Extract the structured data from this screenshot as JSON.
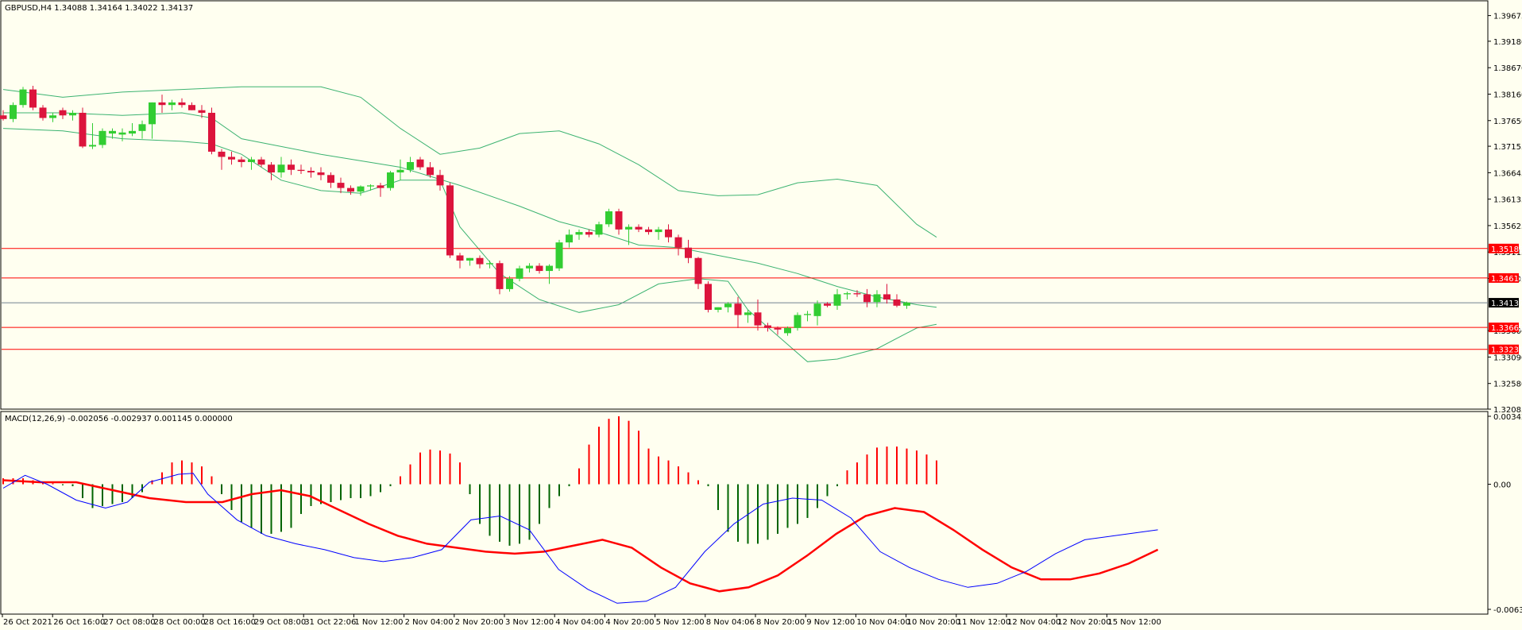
{
  "main_pane": {
    "symbol_info": "GBPUSD,H4  1.34088 1.34164 1.34022 1.34137",
    "y_ticks": [
      "1.39675",
      "1.39180",
      "1.38670",
      "1.38160",
      "1.37650",
      "1.37155",
      "1.36645",
      "1.36135",
      "1.35625",
      "1.35115",
      "1.34605",
      "1.34137",
      "1.33600",
      "1.33090",
      "1.32580",
      "1.32085"
    ],
    "current_price": "1.34137",
    "hlines": [
      {
        "value": 1.35183,
        "label": "1.35183"
      },
      {
        "value": 1.34614,
        "label": "1.34614"
      },
      {
        "value": 1.33662,
        "label": "1.33662"
      },
      {
        "value": 1.33238,
        "label": "1.33238"
      }
    ]
  },
  "macd_pane": {
    "info": "MACD(12,26,9) -0.002056 -0.002937 0.001145 0.000000",
    "y_ticks": [
      "0.003427",
      "0.00",
      "-0.00631"
    ]
  },
  "x_labels": [
    "26 Oct 2021",
    "26 Oct 16:00",
    "27 Oct 08:00",
    "28 Oct 00:00",
    "28 Oct 16:00",
    "29 Oct 08:00",
    "31 Oct 22:06",
    "1 Nov 12:00",
    "2 Nov 04:00",
    "2 Nov 20:00",
    "3 Nov 12:00",
    "4 Nov 04:00",
    "4 Nov 20:00",
    "5 Nov 12:00",
    "8 Nov 04:06",
    "8 Nov 20:00",
    "9 Nov 12:00",
    "10 Nov 04:00",
    "10 Nov 20:00",
    "11 Nov 12:00",
    "12 Nov 04:00",
    "12 Nov 20:00",
    "15 Nov 12:00"
  ],
  "colors": {
    "bull": "#32cd32",
    "bear": "#dc143c",
    "bands": "#3cb371",
    "hline": "#ff0000",
    "macd_line": "#0000ff",
    "signal_line": "#ff0000",
    "hist_pos": "#ff0000",
    "hist_neg": "#006400"
  },
  "chart_data": [
    {
      "type": "candlestick",
      "candles": [
        [
          1.3775,
          1.3785,
          1.3765,
          1.3768
        ],
        [
          1.3768,
          1.38,
          1.3762,
          1.3795
        ],
        [
          1.3795,
          1.383,
          1.379,
          1.3825
        ],
        [
          1.3825,
          1.3832,
          1.3785,
          1.379
        ],
        [
          1.379,
          1.3795,
          1.3765,
          1.377
        ],
        [
          1.377,
          1.378,
          1.3762,
          1.3775
        ],
        [
          1.3785,
          1.379,
          1.3768,
          1.3775
        ],
        [
          1.3775,
          1.3785,
          1.3765,
          1.378
        ],
        [
          1.378,
          1.379,
          1.3712,
          1.3715
        ],
        [
          1.3715,
          1.376,
          1.371,
          1.3718
        ],
        [
          1.3718,
          1.375,
          1.3712,
          1.3745
        ],
        [
          1.374,
          1.375,
          1.373,
          1.3745
        ],
        [
          1.3738,
          1.375,
          1.3725,
          1.3742
        ],
        [
          1.374,
          1.376,
          1.3735,
          1.3745
        ],
        [
          1.3745,
          1.3765,
          1.373,
          1.3758
        ],
        [
          1.3758,
          1.38,
          1.373,
          1.38
        ],
        [
          1.38,
          1.3815,
          1.378,
          1.3795
        ],
        [
          1.3795,
          1.3805,
          1.3785,
          1.38
        ],
        [
          1.38,
          1.3808,
          1.379,
          1.3795
        ],
        [
          1.3795,
          1.38,
          1.3785,
          1.3785
        ],
        [
          1.3785,
          1.3795,
          1.377,
          1.378
        ],
        [
          1.378,
          1.379,
          1.37,
          1.3705
        ],
        [
          1.3705,
          1.371,
          1.367,
          1.3695
        ],
        [
          1.3695,
          1.3705,
          1.368,
          1.369
        ],
        [
          1.369,
          1.3695,
          1.3675,
          1.3685
        ],
        [
          1.3685,
          1.3695,
          1.367,
          1.369
        ],
        [
          1.369,
          1.3695,
          1.3675,
          1.368
        ],
        [
          1.368,
          1.3685,
          1.365,
          1.3665
        ],
        [
          1.3665,
          1.3695,
          1.3655,
          1.368
        ],
        [
          1.368,
          1.369,
          1.366,
          1.367
        ],
        [
          1.367,
          1.368,
          1.3662,
          1.3668
        ],
        [
          1.3668,
          1.3675,
          1.3655,
          1.3665
        ],
        [
          1.3665,
          1.3675,
          1.365,
          1.366
        ],
        [
          1.366,
          1.3665,
          1.3635,
          1.3645
        ],
        [
          1.3645,
          1.3655,
          1.3625,
          1.3635
        ],
        [
          1.3635,
          1.364,
          1.3622,
          1.3628
        ],
        [
          1.3628,
          1.364,
          1.362,
          1.3638
        ],
        [
          1.3638,
          1.3642,
          1.363,
          1.364
        ],
        [
          1.364,
          1.3645,
          1.3618,
          1.3635
        ],
        [
          1.3635,
          1.3668,
          1.363,
          1.3665
        ],
        [
          1.3665,
          1.369,
          1.365,
          1.367
        ],
        [
          1.367,
          1.3695,
          1.3665,
          1.3685
        ],
        [
          1.369,
          1.3695,
          1.367,
          1.3675
        ],
        [
          1.3675,
          1.3685,
          1.3655,
          1.366
        ],
        [
          1.366,
          1.367,
          1.363,
          1.364
        ],
        [
          1.364,
          1.3645,
          1.35,
          1.3505
        ],
        [
          1.3505,
          1.351,
          1.348,
          1.3495
        ],
        [
          1.3495,
          1.35,
          1.3485,
          1.35
        ],
        [
          1.35,
          1.3505,
          1.348,
          1.3488
        ],
        [
          1.3488,
          1.3495,
          1.348,
          1.349
        ],
        [
          1.349,
          1.3495,
          1.343,
          1.344
        ],
        [
          1.344,
          1.3465,
          1.3435,
          1.346
        ],
        [
          1.346,
          1.3485,
          1.3455,
          1.348
        ],
        [
          1.348,
          1.349,
          1.3472,
          1.3485
        ],
        [
          1.3485,
          1.349,
          1.347,
          1.3475
        ],
        [
          1.3475,
          1.3488,
          1.345,
          1.3485
        ],
        [
          1.348,
          1.3535,
          1.3475,
          1.353
        ],
        [
          1.353,
          1.3555,
          1.352,
          1.3545
        ],
        [
          1.3545,
          1.3555,
          1.3535,
          1.355
        ],
        [
          1.355,
          1.3555,
          1.354,
          1.3545
        ],
        [
          1.3545,
          1.357,
          1.354,
          1.3565
        ],
        [
          1.3565,
          1.3595,
          1.356,
          1.359
        ],
        [
          1.359,
          1.3595,
          1.3545,
          1.3555
        ],
        [
          1.3555,
          1.3565,
          1.3525,
          1.356
        ],
        [
          1.356,
          1.3565,
          1.355,
          1.3555
        ],
        [
          1.3555,
          1.356,
          1.3545,
          1.355
        ],
        [
          1.355,
          1.356,
          1.3535,
          1.3555
        ],
        [
          1.3555,
          1.3565,
          1.353,
          1.354
        ],
        [
          1.354,
          1.3545,
          1.3505,
          1.352
        ],
        [
          1.352,
          1.3535,
          1.349,
          1.35
        ],
        [
          1.35,
          1.3502,
          1.344,
          1.345
        ],
        [
          1.345,
          1.3455,
          1.3395,
          1.34
        ],
        [
          1.34,
          1.3405,
          1.3395,
          1.3405
        ],
        [
          1.3405,
          1.3415,
          1.3395,
          1.3412
        ],
        [
          1.3412,
          1.3425,
          1.3365,
          1.339
        ],
        [
          1.339,
          1.34,
          1.3375,
          1.3395
        ],
        [
          1.3395,
          1.342,
          1.336,
          1.337
        ],
        [
          1.337,
          1.3375,
          1.3358,
          1.3365
        ],
        [
          1.3365,
          1.3368,
          1.3352,
          1.3362
        ],
        [
          1.3355,
          1.3368,
          1.335,
          1.3365
        ],
        [
          1.3365,
          1.3395,
          1.336,
          1.339
        ],
        [
          1.339,
          1.3398,
          1.3378,
          1.3392
        ],
        [
          1.3388,
          1.3418,
          1.337,
          1.3412
        ],
        [
          1.3412,
          1.3415,
          1.3405,
          1.3408
        ],
        [
          1.3408,
          1.344,
          1.34,
          1.343
        ],
        [
          1.343,
          1.3435,
          1.342,
          1.3432
        ],
        [
          1.3432,
          1.3438,
          1.3425,
          1.343
        ],
        [
          1.343,
          1.344,
          1.3405,
          1.3415
        ],
        [
          1.3415,
          1.3438,
          1.3405,
          1.343
        ],
        [
          1.343,
          1.345,
          1.3412,
          1.342
        ],
        [
          1.342,
          1.343,
          1.3405,
          1.3408
        ],
        [
          1.3408,
          1.3416,
          1.3402,
          1.3414
        ]
      ],
      "bands_upper": [
        [
          0,
          1.3825
        ],
        [
          6,
          1.381
        ],
        [
          12,
          1.382
        ],
        [
          18,
          1.3825
        ],
        [
          24,
          1.383
        ],
        [
          32,
          1.383
        ],
        [
          36,
          1.381
        ],
        [
          40,
          1.375
        ],
        [
          44,
          1.37
        ],
        [
          48,
          1.3712
        ],
        [
          52,
          1.374
        ],
        [
          56,
          1.3745
        ],
        [
          60,
          1.372
        ],
        [
          64,
          1.368
        ],
        [
          68,
          1.363
        ],
        [
          72,
          1.362
        ],
        [
          76,
          1.3622
        ],
        [
          80,
          1.3645
        ],
        [
          84,
          1.3652
        ],
        [
          88,
          1.364
        ],
        [
          92,
          1.3565
        ],
        [
          94,
          1.354
        ]
      ],
      "bands_middle": [
        [
          0,
          1.378
        ],
        [
          6,
          1.378
        ],
        [
          12,
          1.3775
        ],
        [
          18,
          1.378
        ],
        [
          21,
          1.377
        ],
        [
          24,
          1.373
        ],
        [
          32,
          1.37
        ],
        [
          40,
          1.3675
        ],
        [
          46,
          1.364
        ],
        [
          52,
          1.36
        ],
        [
          56,
          1.357
        ],
        [
          60,
          1.355
        ],
        [
          64,
          1.3525
        ],
        [
          68,
          1.352
        ],
        [
          72,
          1.3505
        ],
        [
          76,
          1.349
        ],
        [
          80,
          1.347
        ],
        [
          84,
          1.3445
        ],
        [
          88,
          1.3425
        ],
        [
          92,
          1.341
        ],
        [
          94,
          1.3405
        ]
      ],
      "bands_lower": [
        [
          0,
          1.375
        ],
        [
          6,
          1.3745
        ],
        [
          12,
          1.373
        ],
        [
          18,
          1.3725
        ],
        [
          21,
          1.372
        ],
        [
          24,
          1.37
        ],
        [
          28,
          1.365
        ],
        [
          32,
          1.363
        ],
        [
          36,
          1.3625
        ],
        [
          40,
          1.365
        ],
        [
          44,
          1.365
        ],
        [
          46,
          1.356
        ],
        [
          50,
          1.347
        ],
        [
          54,
          1.342
        ],
        [
          58,
          1.3395
        ],
        [
          62,
          1.341
        ],
        [
          66,
          1.345
        ],
        [
          70,
          1.346
        ],
        [
          73,
          1.3455
        ],
        [
          75,
          1.34
        ],
        [
          78,
          1.335
        ],
        [
          81,
          1.33
        ],
        [
          84,
          1.3305
        ],
        [
          88,
          1.3325
        ],
        [
          92,
          1.3365
        ],
        [
          94,
          1.3372
        ]
      ],
      "ylim": [
        1.32085,
        1.3996
      ],
      "xlim": [
        0,
        126
      ]
    },
    {
      "type": "bar+line",
      "histogram": [
        0.0003,
        0.0003,
        0.0003,
        0.0002,
        0.0001,
        5e-05,
        -5e-05,
        -0.0001,
        -0.0007,
        -0.0012,
        -0.0011,
        -0.001,
        -0.0009,
        -0.0007,
        -0.0004,
        0.0002,
        0.0006,
        0.0011,
        0.0012,
        0.0011,
        0.0009,
        0.0004,
        -0.0005,
        -0.0013,
        -0.0019,
        -0.0022,
        -0.0025,
        -0.0025,
        -0.0024,
        -0.0022,
        -0.0015,
        -0.0011,
        -0.001,
        -0.0009,
        -0.0008,
        -0.0007,
        -0.0007,
        -0.0006,
        -0.0004,
        -0.0001,
        0.0004,
        0.001,
        0.0016,
        0.00175,
        0.0017,
        0.00155,
        0.0011,
        -0.0005,
        -0.002,
        -0.0026,
        -0.0029,
        -0.0031,
        -0.003,
        -0.0028,
        -0.002,
        -0.0012,
        -0.0006,
        -0.0001,
        0.0008,
        0.002,
        0.0029,
        0.0033,
        0.00343,
        0.0032,
        0.0027,
        0.0018,
        0.0014,
        0.0012,
        0.0009,
        0.0006,
        0.0002,
        -0.0001,
        -0.0013,
        -0.0024,
        -0.0029,
        -0.003,
        -0.003,
        -0.0028,
        -0.0025,
        -0.0022,
        -0.002,
        -0.0017,
        -0.0012,
        -0.0006,
        -0.0001,
        0.0007,
        0.0011,
        0.0015,
        0.00185,
        0.0019,
        0.0019,
        0.0018,
        0.0017,
        0.0015,
        0.0012
      ],
      "macd_line": [
        [
          0,
          -0.0002
        ],
        [
          3,
          0.00045
        ],
        [
          6,
          0.0
        ],
        [
          10,
          -0.0008
        ],
        [
          14,
          -0.0012
        ],
        [
          17,
          -0.0009
        ],
        [
          20,
          0.0001
        ],
        [
          24,
          0.0005
        ],
        [
          26,
          0.00055
        ],
        [
          28,
          -0.0005
        ],
        [
          32,
          -0.0018
        ],
        [
          36,
          -0.0026
        ],
        [
          40,
          -0.003
        ],
        [
          44,
          -0.0033
        ],
        [
          48,
          -0.0037
        ],
        [
          52,
          -0.0039
        ],
        [
          56,
          -0.0037
        ],
        [
          60,
          -0.0033
        ],
        [
          64,
          -0.0018
        ],
        [
          68,
          -0.0016
        ],
        [
          72,
          -0.0023
        ],
        [
          76,
          -0.0043
        ],
        [
          80,
          -0.0053
        ],
        [
          84,
          -0.006
        ],
        [
          88,
          -0.0059
        ],
        [
          92,
          -0.0052
        ],
        [
          96,
          -0.0034
        ],
        [
          100,
          -0.002
        ],
        [
          104,
          -0.001
        ],
        [
          108,
          -0.0007
        ],
        [
          112,
          -0.0008
        ],
        [
          116,
          -0.0017
        ],
        [
          120,
          -0.0034
        ],
        [
          124,
          -0.0042
        ],
        [
          128,
          -0.0048
        ],
        [
          132,
          -0.0052
        ],
        [
          136,
          -0.005
        ],
        [
          140,
          -0.0044
        ],
        [
          144,
          -0.0035
        ],
        [
          148,
          -0.0028
        ],
        [
          152,
          -0.0026
        ],
        [
          156,
          -0.0024
        ],
        [
          158,
          -0.0023
        ]
      ],
      "signal_line": [
        [
          0,
          0.0002
        ],
        [
          5,
          0.0001
        ],
        [
          10,
          0.0001
        ],
        [
          15,
          -0.0003
        ],
        [
          20,
          -0.0007
        ],
        [
          25,
          -0.0009
        ],
        [
          30,
          -0.0009
        ],
        [
          34,
          -0.0005
        ],
        [
          38,
          -0.0003
        ],
        [
          42,
          -0.0006
        ],
        [
          46,
          -0.0013
        ],
        [
          50,
          -0.002
        ],
        [
          54,
          -0.0026
        ],
        [
          58,
          -0.003
        ],
        [
          62,
          -0.0032
        ],
        [
          66,
          -0.0034
        ],
        [
          70,
          -0.0035
        ],
        [
          74,
          -0.0034
        ],
        [
          78,
          -0.0031
        ],
        [
          82,
          -0.0028
        ],
        [
          86,
          -0.0032
        ],
        [
          90,
          -0.0042
        ],
        [
          94,
          -0.005
        ],
        [
          98,
          -0.0054
        ],
        [
          102,
          -0.0052
        ],
        [
          106,
          -0.0046
        ],
        [
          110,
          -0.0036
        ],
        [
          114,
          -0.0025
        ],
        [
          118,
          -0.0016
        ],
        [
          122,
          -0.0012
        ],
        [
          126,
          -0.0014
        ],
        [
          130,
          -0.0023
        ],
        [
          134,
          -0.0033
        ],
        [
          138,
          -0.0042
        ],
        [
          142,
          -0.0048
        ],
        [
          146,
          -0.0048
        ],
        [
          150,
          -0.0045
        ],
        [
          154,
          -0.004
        ],
        [
          158,
          -0.0033
        ]
      ],
      "ylim": [
        -0.00631,
        0.003427
      ],
      "xlim": [
        0,
        158
      ]
    }
  ]
}
